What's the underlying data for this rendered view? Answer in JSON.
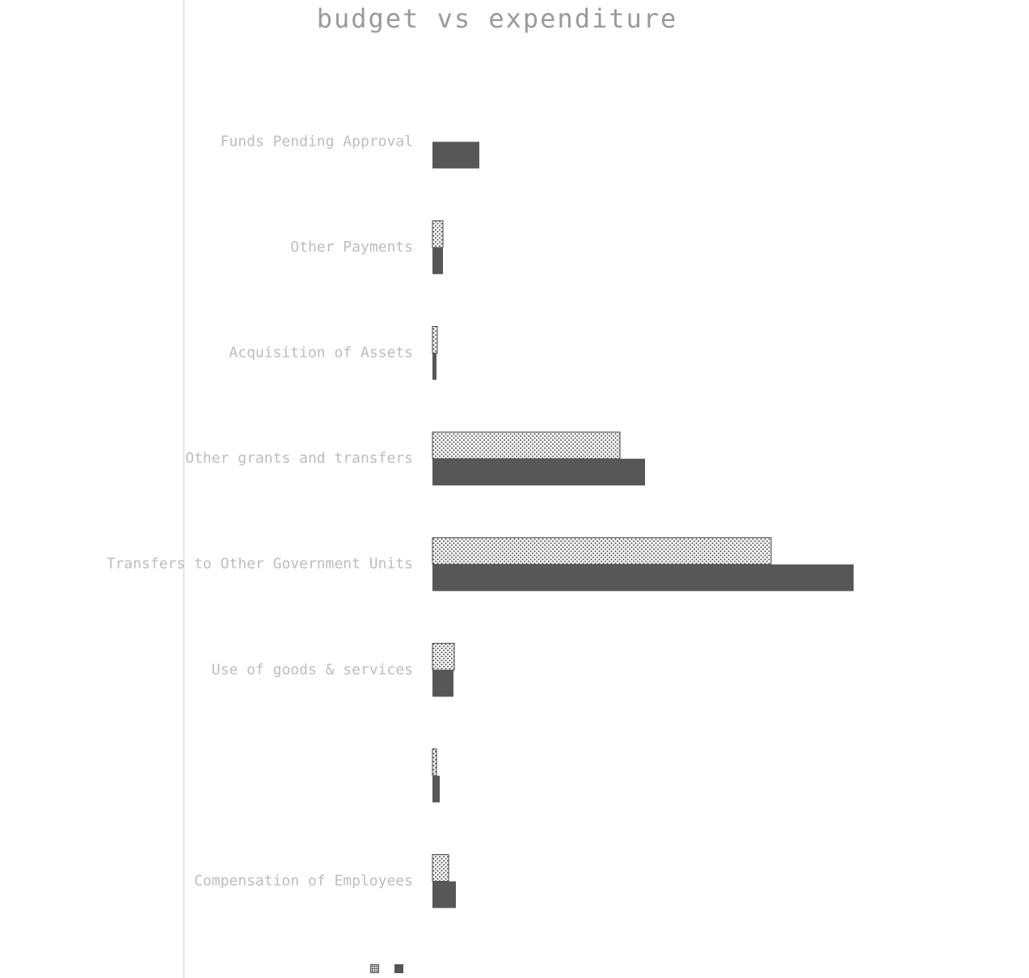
{
  "chart_data": {
    "type": "bar",
    "orientation": "horizontal",
    "title": "budget  vs expenditure",
    "categories": [
      "Funds Pending Approval",
      "Other Payments",
      "Acquisition of Assets",
      "Other grants and transfers",
      "Transfers to Other Government Units",
      "Use of goods & services",
      "",
      "Compensation of Employees"
    ],
    "series": [
      {
        "values": [
          0,
          13,
          6,
          232,
          419,
          27,
          5,
          20
        ],
        "pattern": "dotted",
        "color": "#f2f2f2"
      },
      {
        "values": [
          58,
          13,
          5,
          263,
          521,
          26,
          9,
          29
        ],
        "pattern": "solid",
        "color": "#575757"
      }
    ],
    "xlim": [
      0,
      700
    ],
    "grid": false,
    "legend_position": "bottom"
  },
  "legend": {
    "items": [
      {
        "label": "",
        "pattern": "dotted"
      },
      {
        "label": "",
        "pattern": "solid"
      }
    ]
  }
}
